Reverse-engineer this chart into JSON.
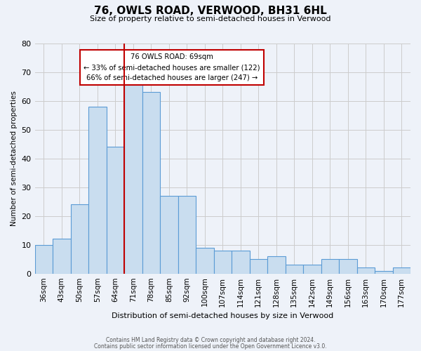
{
  "title": "76, OWLS ROAD, VERWOOD, BH31 6HL",
  "subtitle": "Size of property relative to semi-detached houses in Verwood",
  "xlabel": "Distribution of semi-detached houses by size in Verwood",
  "ylabel": "Number of semi-detached properties",
  "categories": [
    "36sqm",
    "43sqm",
    "50sqm",
    "57sqm",
    "64sqm",
    "71sqm",
    "78sqm",
    "85sqm",
    "92sqm",
    "100sqm",
    "107sqm",
    "114sqm",
    "121sqm",
    "128sqm",
    "135sqm",
    "142sqm",
    "149sqm",
    "156sqm",
    "163sqm",
    "170sqm",
    "177sqm"
  ],
  "values": [
    10,
    12,
    24,
    58,
    44,
    66,
    63,
    27,
    27,
    9,
    8,
    8,
    5,
    6,
    3,
    3,
    5,
    5,
    2,
    1,
    2
  ],
  "bar_color": "#c9ddef",
  "bar_edge_color": "#5b9bd5",
  "highlight_label": "76 OWLS ROAD: 69sqm",
  "smaller_pct": "33% of semi-detached houses are smaller (122)",
  "larger_pct": "66% of semi-detached houses are larger (247)",
  "box_edge_color": "#c00000",
  "ylim": [
    0,
    80
  ],
  "yticks": [
    0,
    10,
    20,
    30,
    40,
    50,
    60,
    70,
    80
  ],
  "grid_color": "#cccccc",
  "bg_color": "#eef2f9",
  "footer1": "Contains HM Land Registry data © Crown copyright and database right 2024.",
  "footer2": "Contains public sector information licensed under the Open Government Licence v3.0."
}
